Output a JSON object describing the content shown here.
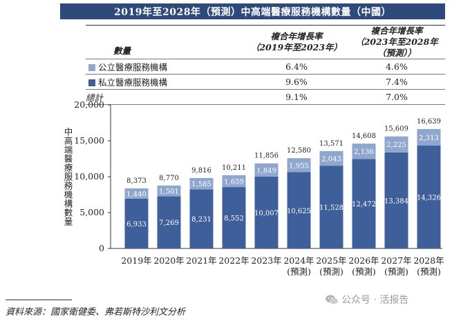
{
  "title": "2019年至2028年（預測）中高端醫療服務機構數量（中國）",
  "table": {
    "headers": [
      "數量",
      "複合年增長率\n（2019年至2023年）",
      "複合年增長率\n（2023年至2028年（預測））"
    ],
    "rows": [
      {
        "label": "公立醫療服務機構",
        "swatch_color": "#8fa6ce",
        "cagr1": "6.4%",
        "cagr2": "4.6%"
      },
      {
        "label": "私立醫療服務機構",
        "swatch_color": "#3f5f9b",
        "cagr1": "9.6%",
        "cagr2": "7.4%"
      },
      {
        "label": "總計",
        "swatch_color": "",
        "cagr1": "9.1%",
        "cagr2": "7.0%"
      }
    ]
  },
  "chart_data": {
    "type": "bar",
    "stacked": true,
    "categories": [
      "2019年",
      "2020年",
      "2021年",
      "2022年",
      "2023年",
      "2024年\n(預測)",
      "2025年\n(預測)",
      "2026年\n(預測)",
      "2027年\n(預測)",
      "2028年\n(預測)"
    ],
    "series": [
      {
        "name": "私立醫療服務機構",
        "color": "#3f5f9b",
        "values": [
          6933,
          7269,
          8231,
          8552,
          10007,
          10625,
          11528,
          12472,
          13384,
          14326
        ],
        "labels": [
          "6,933",
          "7,269",
          "8,231",
          "8,552",
          "10,007",
          "10,625",
          "11,528",
          "12,472",
          "13,384",
          "14,326"
        ]
      },
      {
        "name": "公立醫療服務機構",
        "color": "#8fa6ce",
        "values": [
          1440,
          1501,
          1585,
          1659,
          1849,
          1955,
          2043,
          2136,
          2225,
          2313
        ],
        "labels": [
          "1,440",
          "1,501",
          "1,585",
          "1,659",
          "1,849",
          "1,955",
          "2,043",
          "2,136",
          "2,225",
          "2,313"
        ]
      }
    ],
    "totals": [
      8373,
      8770,
      9816,
      10211,
      11856,
      12580,
      13571,
      14608,
      15609,
      16639
    ],
    "total_labels": [
      "8,373",
      "8,770",
      "9,816",
      "10,211",
      "11,856",
      "12,580",
      "13,571",
      "14,608",
      "15,609",
      "16,639"
    ],
    "ylabel": "中高端醫療服務機構數量",
    "ylim": [
      0,
      20000
    ],
    "yticks": [
      0,
      5000,
      10000,
      15000,
      20000
    ],
    "ytick_labels": [
      "0",
      "5,000",
      "10,000",
      "15,000",
      "20,000"
    ],
    "grid": false
  },
  "source": "資料來源：國家衛健委、弗若斯特沙利文分析",
  "watermark": "公众号 · 活报告"
}
